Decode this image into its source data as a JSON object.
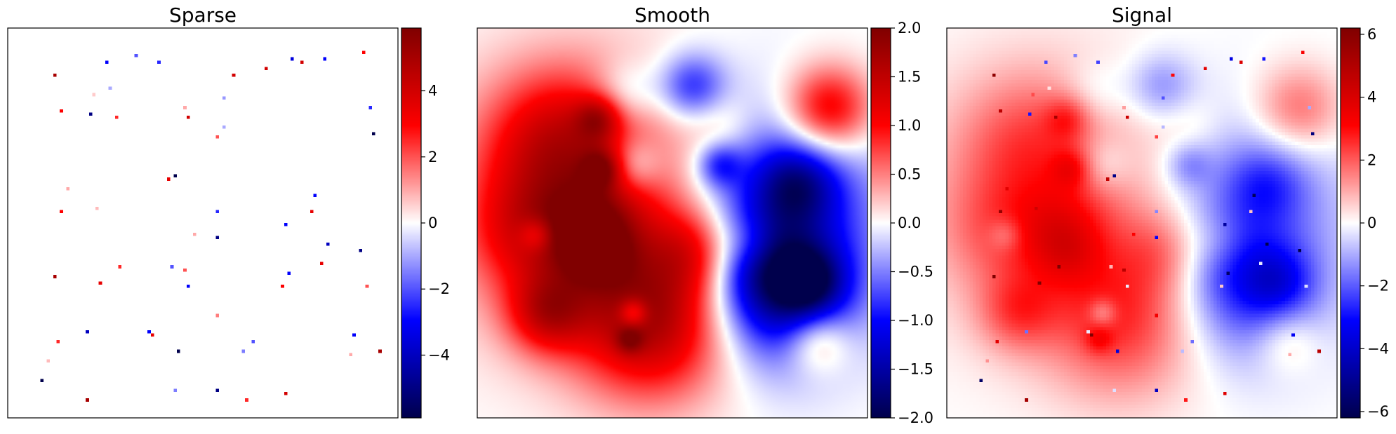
{
  "colors": {
    "cmap": "seismic",
    "negative_extreme": "#00004c",
    "negative": "#0000ff",
    "zero": "#ffffff",
    "positive": "#ff0000",
    "positive_extreme": "#800000"
  },
  "chart_data": [
    {
      "type": "heatmap",
      "title": "Sparse",
      "grid": false,
      "xticks": [],
      "yticks": [],
      "colorbar": {
        "min": -5.9,
        "max": 5.9,
        "ticks": [
          -4,
          -2,
          0,
          2,
          4
        ],
        "tick_labels": [
          "−4",
          "−2",
          "0",
          "2",
          "4"
        ]
      },
      "points": [
        [
          0.12,
          0.12,
          5
        ],
        [
          0.25,
          0.09,
          -3
        ],
        [
          0.33,
          0.07,
          -2
        ],
        [
          0.39,
          0.09,
          -2.5
        ],
        [
          0.58,
          0.12,
          4
        ],
        [
          0.66,
          0.1,
          4
        ],
        [
          0.73,
          0.08,
          -3.5
        ],
        [
          0.75,
          0.09,
          4
        ],
        [
          0.81,
          0.08,
          -3
        ],
        [
          0.91,
          0.06,
          3
        ],
        [
          0.26,
          0.15,
          -1
        ],
        [
          0.14,
          0.21,
          3
        ],
        [
          0.21,
          0.22,
          -5
        ],
        [
          0.28,
          0.23,
          2.5
        ],
        [
          0.45,
          0.2,
          1
        ],
        [
          0.46,
          0.23,
          4
        ],
        [
          0.55,
          0.25,
          -1
        ],
        [
          0.55,
          0.18,
          -1.2
        ],
        [
          0.54,
          0.28,
          2
        ],
        [
          0.93,
          0.2,
          -2.5
        ],
        [
          0.94,
          0.27,
          -6
        ],
        [
          0.43,
          0.38,
          -6
        ],
        [
          0.41,
          0.39,
          3.5
        ],
        [
          0.15,
          0.41,
          1
        ],
        [
          0.23,
          0.46,
          0.8
        ],
        [
          0.14,
          0.47,
          3
        ],
        [
          0.54,
          0.47,
          -2.5
        ],
        [
          0.79,
          0.43,
          -3
        ],
        [
          0.78,
          0.47,
          3.5
        ],
        [
          0.71,
          0.5,
          -3
        ],
        [
          0.48,
          0.53,
          1
        ],
        [
          0.82,
          0.55,
          -4
        ],
        [
          0.54,
          0.54,
          -5
        ],
        [
          0.9,
          0.57,
          -5
        ],
        [
          0.29,
          0.61,
          2.5
        ],
        [
          0.42,
          0.61,
          -2
        ],
        [
          0.45,
          0.62,
          2
        ],
        [
          0.8,
          0.6,
          3.5
        ],
        [
          0.72,
          0.63,
          -3
        ],
        [
          0.24,
          0.65,
          3.5
        ],
        [
          0.46,
          0.66,
          -3
        ],
        [
          0.7,
          0.66,
          3
        ],
        [
          0.12,
          0.64,
          5
        ],
        [
          0.92,
          0.66,
          2
        ],
        [
          0.54,
          0.74,
          1.5
        ],
        [
          0.2,
          0.78,
          -4
        ],
        [
          0.13,
          0.8,
          2.5
        ],
        [
          0.36,
          0.78,
          -3
        ],
        [
          0.37,
          0.79,
          3.5
        ],
        [
          0.63,
          0.8,
          -2
        ],
        [
          0.89,
          0.79,
          -3
        ],
        [
          0.6,
          0.83,
          -1.5
        ],
        [
          0.44,
          0.83,
          -6
        ],
        [
          0.95,
          0.83,
          5
        ],
        [
          0.88,
          0.84,
          1
        ],
        [
          0.09,
          0.9,
          -6
        ],
        [
          0.2,
          0.95,
          5
        ],
        [
          0.43,
          0.93,
          -1.5
        ],
        [
          0.54,
          0.93,
          -5
        ],
        [
          0.61,
          0.95,
          2.5
        ],
        [
          0.71,
          0.94,
          4
        ],
        [
          0.1,
          0.85,
          0.8
        ],
        [
          0.22,
          0.17,
          0.6
        ]
      ]
    },
    {
      "type": "heatmap",
      "title": "Smooth",
      "grid": false,
      "xticks": [],
      "yticks": [],
      "colorbar": {
        "min": -2.0,
        "max": 2.0,
        "ticks": [
          -2.0,
          -1.5,
          -1.0,
          -0.5,
          0.0,
          0.5,
          1.0,
          1.5,
          2.0
        ],
        "tick_labels": [
          "−2.0",
          "−1.5",
          "−1.0",
          "−0.5",
          "0.0",
          "0.5",
          "1.0",
          "1.5",
          "2.0"
        ]
      },
      "blobs": [
        [
          0.28,
          0.45,
          0.22,
          1.3
        ],
        [
          0.2,
          0.28,
          0.12,
          0.7
        ],
        [
          0.12,
          0.52,
          0.1,
          0.5
        ],
        [
          0.29,
          0.52,
          0.08,
          0.8
        ],
        [
          0.45,
          0.75,
          0.14,
          1.45
        ],
        [
          0.57,
          0.57,
          0.08,
          0.9
        ],
        [
          0.18,
          0.73,
          0.07,
          1.0
        ],
        [
          0.31,
          0.58,
          0.06,
          0.5
        ],
        [
          0.9,
          0.21,
          0.08,
          1.3
        ],
        [
          0.87,
          0.8,
          0.06,
          0.8
        ],
        [
          0.62,
          0.25,
          0.06,
          0.3
        ],
        [
          0.31,
          0.23,
          0.04,
          0.8
        ],
        [
          0.32,
          0.36,
          0.035,
          0.8
        ],
        [
          0.77,
          0.45,
          0.18,
          -1.05
        ],
        [
          0.78,
          0.67,
          0.13,
          -0.9
        ],
        [
          0.8,
          0.72,
          0.12,
          -0.5
        ],
        [
          0.55,
          0.15,
          0.06,
          -0.9
        ],
        [
          0.38,
          0.17,
          0.06,
          -0.5
        ],
        [
          0.4,
          0.35,
          0.05,
          -0.65
        ],
        [
          0.62,
          0.35,
          0.04,
          -0.7
        ],
        [
          0.7,
          0.6,
          0.09,
          -0.5
        ],
        [
          0.82,
          0.4,
          0.07,
          -0.9
        ],
        [
          0.85,
          0.65,
          0.06,
          -0.9
        ],
        [
          0.15,
          0.53,
          0.03,
          -0.6
        ],
        [
          0.4,
          0.73,
          0.025,
          -0.8
        ],
        [
          0.39,
          0.8,
          0.025,
          0.6
        ],
        [
          0.7,
          0.55,
          0.05,
          0.4
        ]
      ]
    },
    {
      "type": "heatmap",
      "title": "Signal",
      "grid": false,
      "xticks": [],
      "yticks": [],
      "colorbar": {
        "min": -6.2,
        "max": 6.2,
        "ticks": [
          -6,
          -4,
          -2,
          0,
          2,
          4,
          6
        ],
        "tick_labels": [
          "−6",
          "−4",
          "−2",
          "0",
          "2",
          "4",
          "6"
        ]
      },
      "composition": "Sparse + Smooth"
    }
  ]
}
